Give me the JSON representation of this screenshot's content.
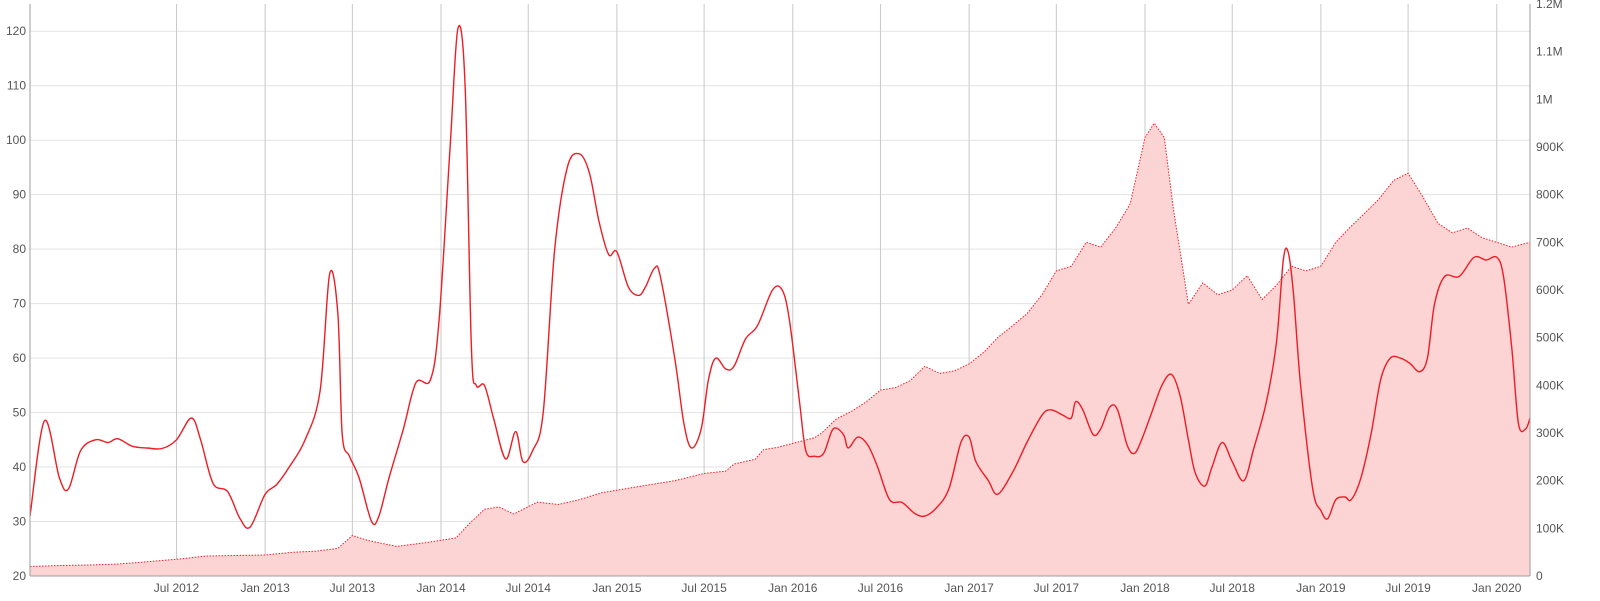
{
  "chart_data": {
    "type": "line",
    "x_axis": {
      "type": "date",
      "range": [
        "2011-09-01",
        "2020-03-10"
      ],
      "ticks": [
        {
          "date": "2012-07-01",
          "label": "Jul 2012"
        },
        {
          "date": "2013-01-01",
          "label": "Jan 2013"
        },
        {
          "date": "2013-07-01",
          "label": "Jul 2013"
        },
        {
          "date": "2014-01-01",
          "label": "Jan 2014"
        },
        {
          "date": "2014-07-01",
          "label": "Jul 2014"
        },
        {
          "date": "2015-01-01",
          "label": "Jan 2015"
        },
        {
          "date": "2015-07-01",
          "label": "Jul 2015"
        },
        {
          "date": "2016-01-01",
          "label": "Jan 2016"
        },
        {
          "date": "2016-07-01",
          "label": "Jul 2016"
        },
        {
          "date": "2017-01-01",
          "label": "Jan 2017"
        },
        {
          "date": "2017-07-01",
          "label": "Jul 2017"
        },
        {
          "date": "2018-01-01",
          "label": "Jan 2018"
        },
        {
          "date": "2018-07-01",
          "label": "Jul 2018"
        },
        {
          "date": "2019-01-01",
          "label": "Jan 2019"
        },
        {
          "date": "2019-07-01",
          "label": "Jul 2019"
        },
        {
          "date": "2020-01-01",
          "label": "Jan 2020"
        }
      ]
    },
    "y_left": {
      "range": [
        20,
        125
      ],
      "ticks": [
        {
          "value": 20,
          "label": "20"
        },
        {
          "value": 30,
          "label": "30"
        },
        {
          "value": 40,
          "label": "40"
        },
        {
          "value": 50,
          "label": "50"
        },
        {
          "value": 60,
          "label": "60"
        },
        {
          "value": 70,
          "label": "70"
        },
        {
          "value": 80,
          "label": "80"
        },
        {
          "value": 90,
          "label": "90"
        },
        {
          "value": 100,
          "label": "100"
        },
        {
          "value": 110,
          "label": "110"
        },
        {
          "value": 120,
          "label": "120"
        }
      ]
    },
    "y_right": {
      "range": [
        0,
        1200000
      ],
      "ticks": [
        {
          "value": 0,
          "label": "0"
        },
        {
          "value": 100000,
          "label": "100K"
        },
        {
          "value": 200000,
          "label": "200K"
        },
        {
          "value": 300000,
          "label": "300K"
        },
        {
          "value": 400000,
          "label": "400K"
        },
        {
          "value": 500000,
          "label": "500K"
        },
        {
          "value": 600000,
          "label": "600K"
        },
        {
          "value": 700000,
          "label": "700K"
        },
        {
          "value": 800000,
          "label": "800K"
        },
        {
          "value": 900000,
          "label": "900K"
        },
        {
          "value": 1000000,
          "label": "1M"
        },
        {
          "value": 1100000,
          "label": "1.1M"
        },
        {
          "value": 1200000,
          "label": "1.2M"
        }
      ]
    },
    "grid": true,
    "legend": "none",
    "series": [
      {
        "type": "line",
        "axis": "left",
        "color": "#ee1c25",
        "points": [
          [
            "2011-09-01",
            31
          ],
          [
            "2011-10-01",
            48.5
          ],
          [
            "2011-11-01",
            38
          ],
          [
            "2011-11-20",
            36
          ],
          [
            "2011-12-15",
            43
          ],
          [
            "2012-01-15",
            45
          ],
          [
            "2012-02-10",
            44.5
          ],
          [
            "2012-03-01",
            45.2
          ],
          [
            "2012-04-01",
            43.8
          ],
          [
            "2012-05-01",
            43.5
          ],
          [
            "2012-06-01",
            43.4
          ],
          [
            "2012-07-01",
            45
          ],
          [
            "2012-08-01",
            49
          ],
          [
            "2012-08-20",
            45
          ],
          [
            "2012-09-15",
            37
          ],
          [
            "2012-10-15",
            35.5
          ],
          [
            "2012-11-10",
            30.5
          ],
          [
            "2012-12-01",
            29
          ],
          [
            "2013-01-01",
            35
          ],
          [
            "2013-01-25",
            36.8
          ],
          [
            "2013-02-20",
            40
          ],
          [
            "2013-03-25",
            45
          ],
          [
            "2013-04-25",
            54
          ],
          [
            "2013-05-15",
            75.5
          ],
          [
            "2013-06-01",
            68
          ],
          [
            "2013-06-10",
            46
          ],
          [
            "2013-06-25",
            42
          ],
          [
            "2013-07-15",
            38
          ],
          [
            "2013-08-10",
            30
          ],
          [
            "2013-08-25",
            31
          ],
          [
            "2013-09-15",
            38
          ],
          [
            "2013-10-15",
            47
          ],
          [
            "2013-11-10",
            55.5
          ],
          [
            "2013-12-10",
            56
          ],
          [
            "2013-12-28",
            67
          ],
          [
            "2014-01-20",
            99
          ],
          [
            "2014-02-05",
            120.5
          ],
          [
            "2014-02-20",
            110
          ],
          [
            "2014-03-05",
            62
          ],
          [
            "2014-03-15",
            55
          ],
          [
            "2014-04-01",
            55
          ],
          [
            "2014-04-20",
            49
          ],
          [
            "2014-05-15",
            41.5
          ],
          [
            "2014-06-05",
            46.5
          ],
          [
            "2014-06-20",
            41
          ],
          [
            "2014-07-10",
            43
          ],
          [
            "2014-08-01",
            50
          ],
          [
            "2014-08-25",
            80
          ],
          [
            "2014-09-20",
            95
          ],
          [
            "2014-10-15",
            97.5
          ],
          [
            "2014-11-05",
            94
          ],
          [
            "2014-11-25",
            85
          ],
          [
            "2014-12-15",
            79
          ],
          [
            "2015-01-01",
            79.5
          ],
          [
            "2015-01-25",
            73
          ],
          [
            "2015-02-15",
            71.5
          ],
          [
            "2015-03-01",
            73
          ],
          [
            "2015-03-20",
            76.5
          ],
          [
            "2015-04-01",
            75
          ],
          [
            "2015-05-01",
            60
          ],
          [
            "2015-05-20",
            48
          ],
          [
            "2015-06-05",
            43.5
          ],
          [
            "2015-06-25",
            47
          ],
          [
            "2015-07-10",
            56
          ],
          [
            "2015-07-25",
            60
          ],
          [
            "2015-08-15",
            58
          ],
          [
            "2015-09-01",
            58.5
          ],
          [
            "2015-09-25",
            63.5
          ],
          [
            "2015-10-20",
            66
          ],
          [
            "2015-11-20",
            72.5
          ],
          [
            "2015-12-10",
            72.5
          ],
          [
            "2015-12-25",
            67
          ],
          [
            "2016-01-15",
            52
          ],
          [
            "2016-01-28",
            43
          ],
          [
            "2016-02-15",
            42
          ],
          [
            "2016-03-05",
            42.5
          ],
          [
            "2016-03-25",
            47
          ],
          [
            "2016-04-15",
            46
          ],
          [
            "2016-04-25",
            43.5
          ],
          [
            "2016-05-15",
            45.5
          ],
          [
            "2016-06-05",
            44
          ],
          [
            "2016-06-25",
            40
          ],
          [
            "2016-07-20",
            34
          ],
          [
            "2016-08-15",
            33.5
          ],
          [
            "2016-09-10",
            31.5
          ],
          [
            "2016-10-01",
            31
          ],
          [
            "2016-10-25",
            32.5
          ],
          [
            "2016-11-20",
            36
          ],
          [
            "2016-12-15",
            44.5
          ],
          [
            "2017-01-01",
            45.5
          ],
          [
            "2017-01-15",
            41
          ],
          [
            "2017-02-10",
            37.5
          ],
          [
            "2017-03-01",
            35
          ],
          [
            "2017-04-01",
            39
          ],
          [
            "2017-05-01",
            44.5
          ],
          [
            "2017-06-01",
            49.5
          ],
          [
            "2017-06-20",
            50.5
          ],
          [
            "2017-07-15",
            49.5
          ],
          [
            "2017-08-01",
            49
          ],
          [
            "2017-08-10",
            52
          ],
          [
            "2017-08-25",
            50.5
          ],
          [
            "2017-09-15",
            46
          ],
          [
            "2017-10-01",
            47
          ],
          [
            "2017-10-20",
            51
          ],
          [
            "2017-11-05",
            50.5
          ],
          [
            "2017-11-25",
            44
          ],
          [
            "2017-12-10",
            42.5
          ],
          [
            "2017-12-25",
            45
          ],
          [
            "2018-01-15",
            50
          ],
          [
            "2018-02-05",
            55
          ],
          [
            "2018-02-25",
            57
          ],
          [
            "2018-03-15",
            53
          ],
          [
            "2018-04-01",
            45
          ],
          [
            "2018-04-15",
            39
          ],
          [
            "2018-05-05",
            36.5
          ],
          [
            "2018-05-20",
            40
          ],
          [
            "2018-06-10",
            44.5
          ],
          [
            "2018-07-01",
            41
          ],
          [
            "2018-07-25",
            37.5
          ],
          [
            "2018-08-15",
            43.5
          ],
          [
            "2018-09-10",
            52
          ],
          [
            "2018-10-01",
            63
          ],
          [
            "2018-10-15",
            78
          ],
          [
            "2018-10-25",
            79.5
          ],
          [
            "2018-11-05",
            72
          ],
          [
            "2018-11-20",
            55
          ],
          [
            "2018-12-15",
            36
          ],
          [
            "2019-01-01",
            32
          ],
          [
            "2019-01-15",
            30.5
          ],
          [
            "2019-02-01",
            34
          ],
          [
            "2019-02-20",
            34.5
          ],
          [
            "2019-03-05",
            34
          ],
          [
            "2019-03-25",
            38
          ],
          [
            "2019-04-15",
            46
          ],
          [
            "2019-05-05",
            56
          ],
          [
            "2019-05-25",
            60
          ],
          [
            "2019-06-15",
            60
          ],
          [
            "2019-07-05",
            59
          ],
          [
            "2019-07-25",
            57.5
          ],
          [
            "2019-08-10",
            60
          ],
          [
            "2019-08-25",
            70
          ],
          [
            "2019-09-15",
            75
          ],
          [
            "2019-10-15",
            75
          ],
          [
            "2019-11-15",
            78.5
          ],
          [
            "2019-12-10",
            78
          ],
          [
            "2020-01-01",
            78.5
          ],
          [
            "2020-01-15",
            75
          ],
          [
            "2020-02-01",
            62
          ],
          [
            "2020-02-15",
            48
          ],
          [
            "2020-03-01",
            47
          ],
          [
            "2020-03-10",
            49
          ]
        ]
      }
    ]
  }
}
